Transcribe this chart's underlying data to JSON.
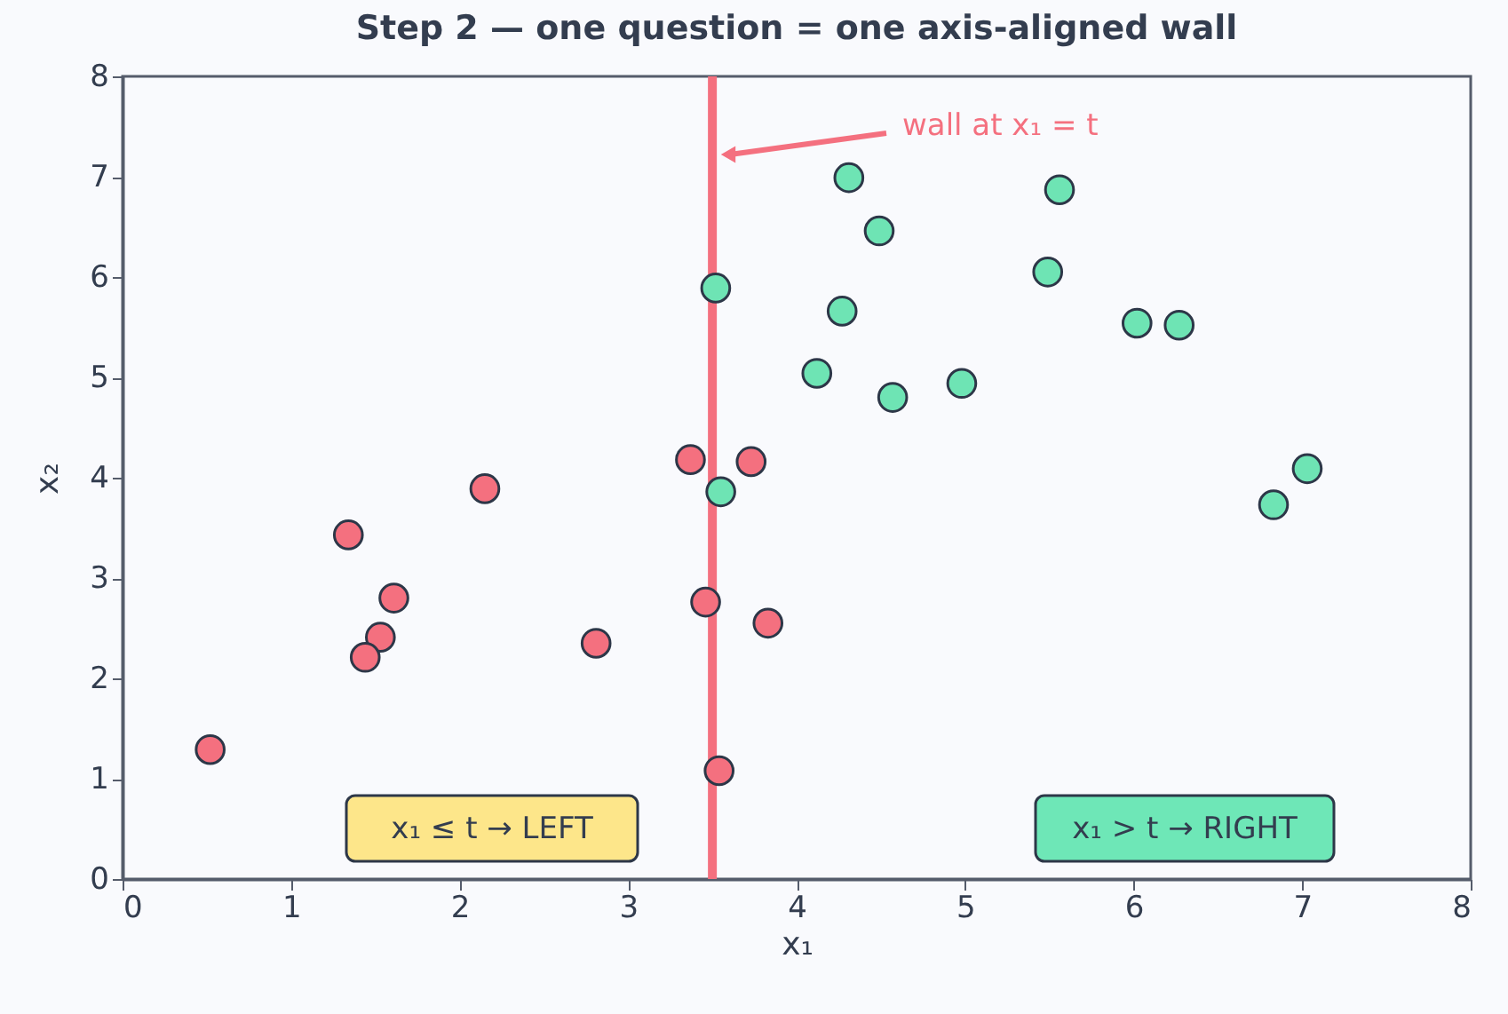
{
  "chart_data": {
    "type": "scatter",
    "title": "Step 2 — one question = one axis-aligned wall",
    "xlabel": "x₁",
    "ylabel": "x₂",
    "xlim": [
      0,
      8
    ],
    "ylim": [
      0,
      8
    ],
    "xticks": [
      0,
      1,
      2,
      3,
      4,
      5,
      6,
      7,
      8
    ],
    "yticks": [
      0,
      1,
      2,
      3,
      4,
      5,
      6,
      7,
      8
    ],
    "grid": false,
    "legend": false,
    "marker": "circle",
    "series": [
      {
        "color": "#f4707f",
        "x": [
          0.52,
          1.34,
          1.61,
          1.53,
          1.44,
          2.15,
          2.81,
          3.37,
          3.73,
          3.46,
          3.83,
          3.54
        ],
        "values": [
          1.29,
          3.43,
          2.8,
          2.41,
          2.21,
          3.89,
          2.35,
          4.18,
          4.16,
          2.76,
          2.55,
          1.08
        ]
      },
      {
        "color": "#6ee4b4",
        "x": [
          3.52,
          3.55,
          4.31,
          4.49,
          4.27,
          4.12,
          4.57,
          4.98,
          5.56,
          5.49,
          6.02,
          6.27,
          6.83,
          7.03
        ],
        "values": [
          5.89,
          3.86,
          6.99,
          6.46,
          5.66,
          5.04,
          4.8,
          4.94,
          6.87,
          6.05,
          5.54,
          5.52,
          3.73,
          4.09
        ]
      }
    ],
    "ref_lines": [
      {
        "axis": "x",
        "value": 3.5,
        "color": "#f4707f",
        "label": "wall at x₁ = t"
      }
    ],
    "annotations": [
      "x₁ ≤ t  → LEFT",
      "x₁ > t  → RIGHT"
    ]
  }
}
